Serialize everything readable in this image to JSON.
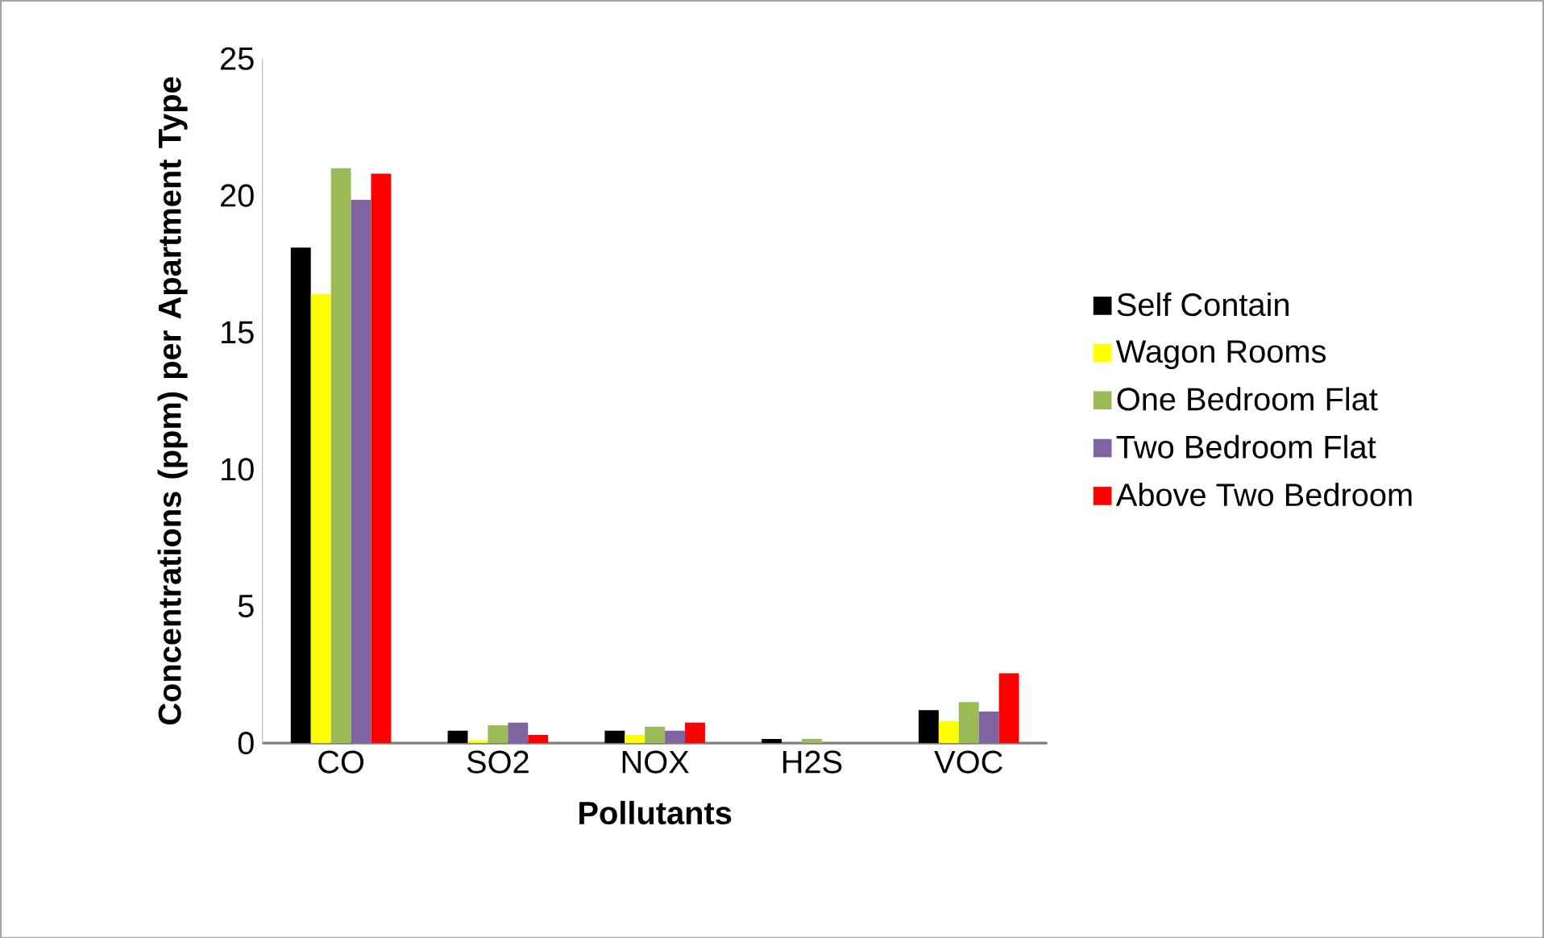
{
  "chart_data": {
    "type": "bar",
    "xlabel": "Pollutants",
    "ylabel": "Concentrations (ppm) per Apartment Type",
    "categories": [
      "CO",
      "SO2",
      "NOX",
      "H2S",
      "VOC"
    ],
    "series": [
      {
        "name": "Self Contain",
        "color": "#000000",
        "values": [
          18.1,
          0.45,
          0.45,
          0.15,
          1.2
        ]
      },
      {
        "name": "Wagon Rooms",
        "color": "#ffff00",
        "values": [
          16.4,
          0.1,
          0.3,
          0,
          0.8
        ]
      },
      {
        "name": "One Bedroom Flat",
        "color": "#9bbb59",
        "values": [
          21.0,
          0.65,
          0.6,
          0.15,
          1.5
        ]
      },
      {
        "name": "Two Bedroom Flat",
        "color": "#8064a2",
        "values": [
          19.85,
          0.75,
          0.45,
          0,
          1.15
        ]
      },
      {
        "name": "Above Two Bedroom",
        "color": "#ff0000",
        "values": [
          20.8,
          0.3,
          0.75,
          0,
          2.55
        ]
      }
    ],
    "ylim": [
      0,
      25
    ],
    "yticks": [
      0,
      5,
      10,
      15,
      20,
      25
    ],
    "grid": false,
    "legend": "right"
  }
}
